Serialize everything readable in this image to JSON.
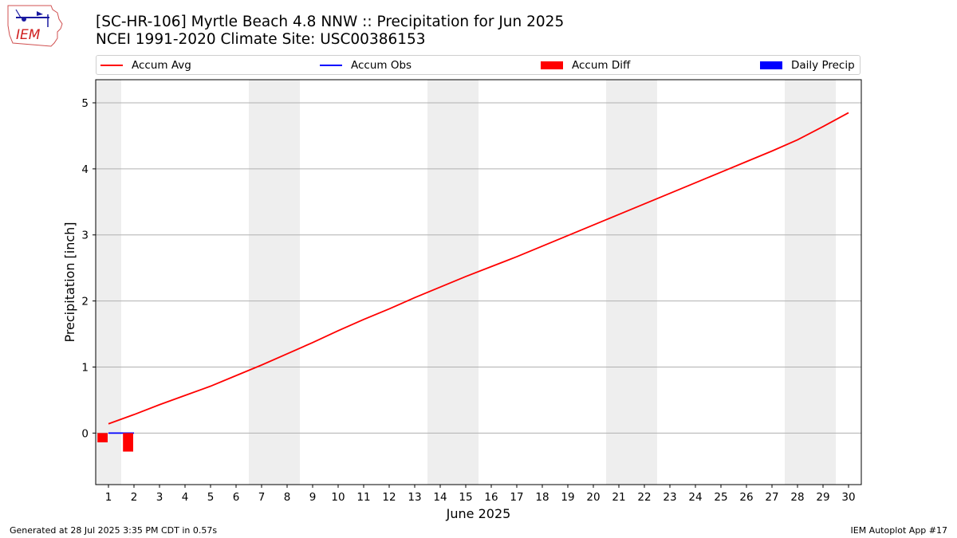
{
  "header": {
    "logo_text": "IEM",
    "title_line1": "[SC-HR-106] Myrtle Beach 4.8 NNW :: Precipitation for Jun 2025",
    "title_line2": "NCEI 1991-2020 Climate Site: USC00386153"
  },
  "legend": [
    {
      "label": "Accum Avg",
      "color": "#ff0000",
      "kind": "line"
    },
    {
      "label": "Accum Obs",
      "color": "#0000ff",
      "kind": "line"
    },
    {
      "label": "Accum Diff",
      "color": "#ff0000",
      "kind": "box"
    },
    {
      "label": "Daily Precip",
      "color": "#0000ff",
      "kind": "box"
    }
  ],
  "footer": {
    "generated": "Generated at 28 Jul 2025 3:35 PM CDT in 0.57s",
    "app": "IEM Autoplot App #17"
  },
  "chart_data": {
    "type": "line",
    "xlabel": "June 2025",
    "ylabel": "Precipitation [inch]",
    "xlim": [
      0.5,
      30.5
    ],
    "ylim": [
      -0.78,
      5.35
    ],
    "yticks": [
      0,
      1,
      2,
      3,
      4,
      5
    ],
    "grid": "horizontal",
    "legend_position": "top",
    "weekend_shading": [
      [
        0.5,
        1.5
      ],
      [
        6.5,
        8.5
      ],
      [
        13.5,
        15.5
      ],
      [
        20.5,
        22.5
      ],
      [
        27.5,
        29.5
      ]
    ],
    "weekend_color": "#eeeeee",
    "x": [
      1,
      2,
      3,
      4,
      5,
      6,
      7,
      8,
      9,
      10,
      11,
      12,
      13,
      14,
      15,
      16,
      17,
      18,
      19,
      20,
      21,
      22,
      23,
      24,
      25,
      26,
      27,
      28,
      29,
      30
    ],
    "series": [
      {
        "name": "Accum Avg",
        "color": "#ff0000",
        "kind": "line",
        "values": [
          0.14,
          0.28,
          0.43,
          0.57,
          0.71,
          0.87,
          1.03,
          1.2,
          1.37,
          1.55,
          1.72,
          1.88,
          2.05,
          2.21,
          2.37,
          2.52,
          2.67,
          2.83,
          2.99,
          3.15,
          3.31,
          3.47,
          3.63,
          3.79,
          3.95,
          4.11,
          4.27,
          4.44,
          4.64,
          4.85
        ]
      },
      {
        "name": "Accum Obs",
        "color": "#0000ff",
        "kind": "line",
        "x": [
          1,
          2
        ],
        "values": [
          0.0,
          0.0
        ]
      },
      {
        "name": "Accum Diff",
        "color": "#ff0000",
        "kind": "bar",
        "x": [
          1,
          2
        ],
        "values": [
          -0.14,
          -0.28
        ]
      },
      {
        "name": "Daily Precip",
        "color": "#0000ff",
        "kind": "bar",
        "x": [
          1,
          2
        ],
        "values": [
          0.0,
          0.0
        ]
      }
    ]
  }
}
